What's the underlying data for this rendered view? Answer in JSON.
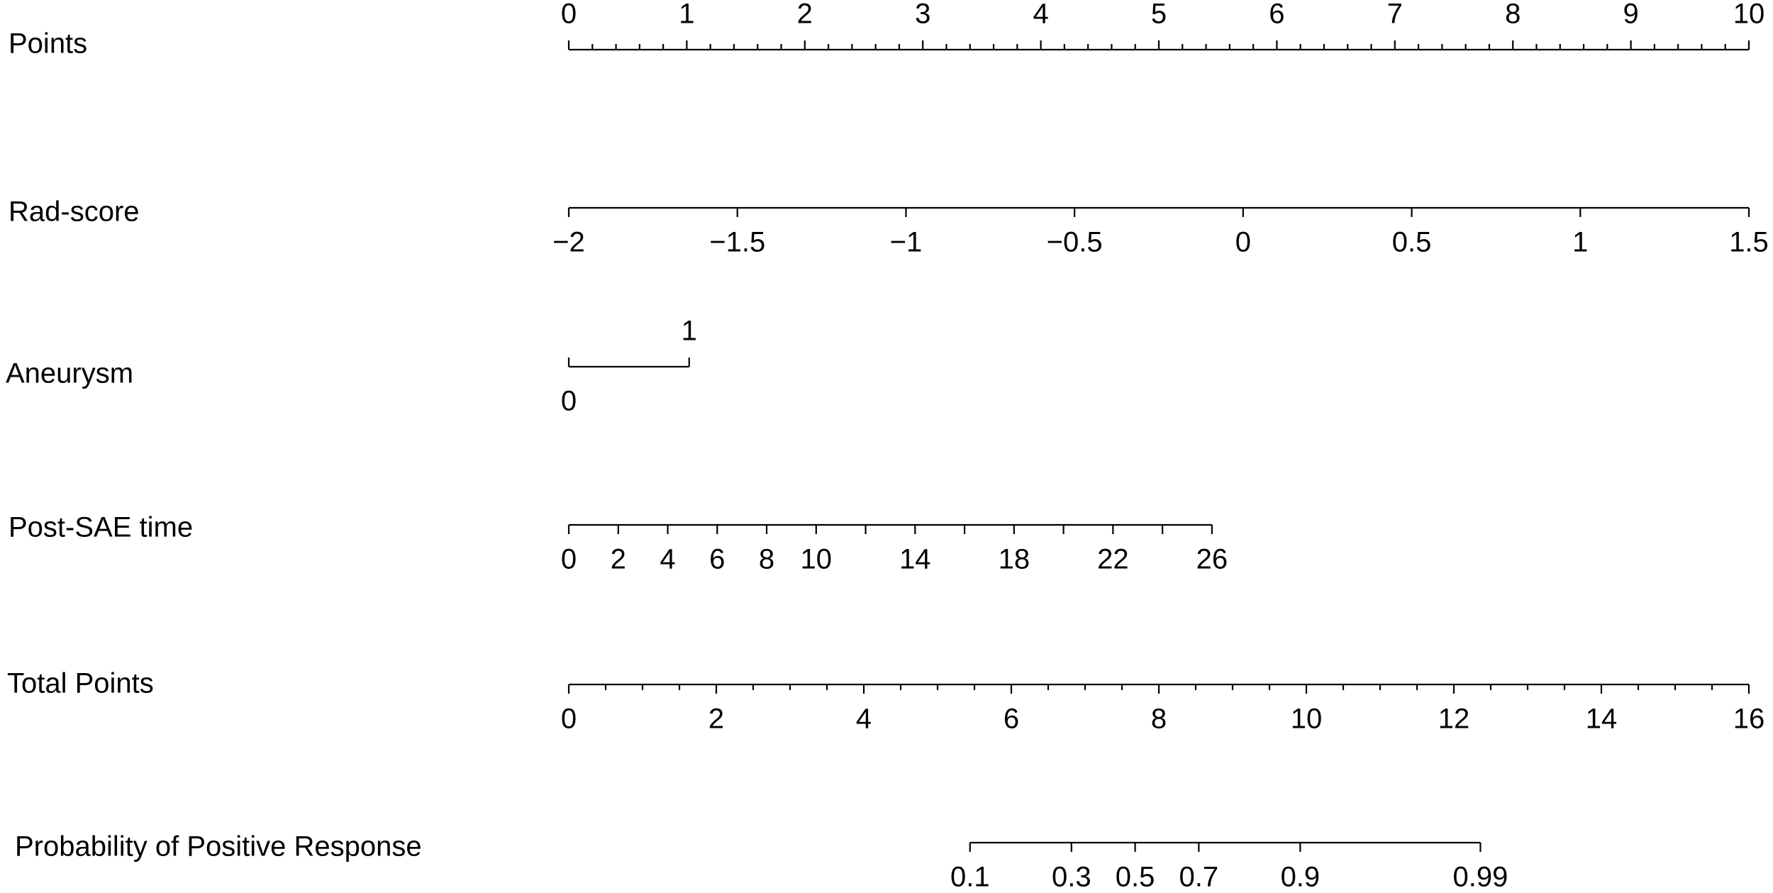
{
  "chart_data": {
    "type": "nomogram",
    "axes": [
      {
        "label": "Points",
        "range": [
          0,
          10
        ],
        "span": [
          0,
          10
        ],
        "side": "above",
        "ticks": [
          0,
          1,
          2,
          3,
          4,
          5,
          6,
          7,
          8,
          9,
          10
        ],
        "minor_ticks": [
          0.2,
          0.4,
          0.6,
          0.8,
          1.2,
          1.4,
          1.6,
          1.8,
          2.2,
          2.4,
          2.6,
          2.8,
          3.2,
          3.4,
          3.6,
          3.8,
          4.2,
          4.4,
          4.6,
          4.8,
          5.2,
          5.4,
          5.6,
          5.8,
          6.2,
          6.4,
          6.6,
          6.8,
          7.2,
          7.4,
          7.6,
          7.8,
          8.2,
          8.4,
          8.6,
          8.8,
          9.2,
          9.4,
          9.6,
          9.8
        ]
      },
      {
        "label": "Rad-score",
        "range": [
          -2,
          1.5
        ],
        "span": [
          0,
          10
        ],
        "side": "below",
        "ticks": [
          {
            "value": -2,
            "label": "−2"
          },
          {
            "value": -1.5,
            "label": "−1.5"
          },
          {
            "value": -1,
            "label": "−1"
          },
          {
            "value": -0.5,
            "label": "−0.5"
          },
          0,
          0.5,
          1,
          1.5
        ]
      },
      {
        "label": "Aneurysm",
        "range": [
          0,
          1
        ],
        "span": [
          0,
          1.02
        ],
        "side": "above",
        "ticks": [
          0,
          1
        ],
        "tick_sides": [
          "below",
          "above"
        ]
      },
      {
        "label": "Post-SAE time",
        "range": [
          0,
          26
        ],
        "span": [
          0,
          5.45
        ],
        "side": "below",
        "ticks": [
          0,
          2,
          4,
          6,
          8,
          10,
          {
            "value": 12,
            "label": null
          },
          14,
          {
            "value": 16,
            "label": null
          },
          18,
          {
            "value": 20,
            "label": null
          },
          22,
          {
            "value": 24,
            "label": null
          },
          26
        ]
      },
      {
        "label": "Total Points",
        "range": [
          0,
          16
        ],
        "span": [
          0,
          10
        ],
        "side": "below",
        "ticks": [
          0,
          2,
          4,
          6,
          8,
          10,
          12,
          14,
          16
        ],
        "minor_ticks": [
          0.5,
          1,
          1.5,
          2.5,
          3,
          3.5,
          4.5,
          5,
          5.5,
          6.5,
          7,
          7.5,
          8.5,
          9,
          9.5,
          10.5,
          11,
          11.5,
          12.5,
          13,
          13.5,
          14.5,
          15,
          15.5
        ]
      },
      {
        "label": "Probability of Positive Response",
        "range": [
          0.1,
          0.99
        ],
        "span": [
          3.4,
          7.725
        ],
        "scale": "logit",
        "side": "below",
        "ticks": [
          0.1,
          0.3,
          0.5,
          0.7,
          0.9,
          0.99
        ]
      }
    ]
  }
}
